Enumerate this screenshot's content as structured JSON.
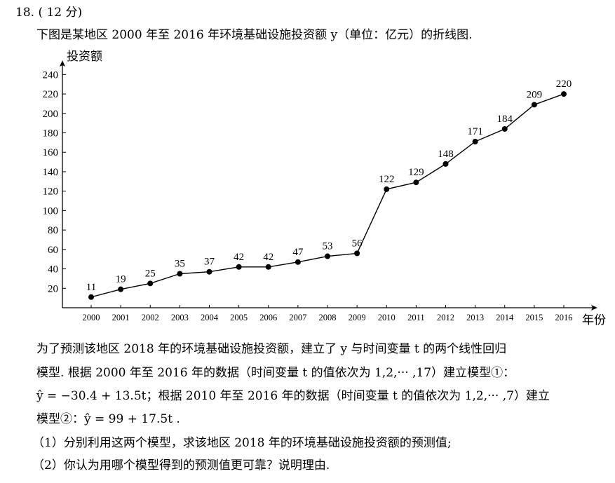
{
  "problem": {
    "number": "18.",
    "score": "( 12 分)",
    "intro": "下图是某地区 2000 年至 2016 年环境基础设施投资额 y（单位：亿元）的折线图.",
    "para_lines": [
      "为了预测该地区 2018 年的环境基础设施投资额，建立了 y 与时间变量 t 的两个线性回归",
      "模型. 根据 2000 年至 2016 年的数据（时间变量 t 的值依次为 1,2,··· ,17）建立模型①：",
      "ŷ = −30.4 + 13.5t；根据 2010 年至 2016 年的数据（时间变量 t 的值依次为 1,2,··· ,7）建立",
      "模型②：ŷ = 99 + 17.5t ."
    ],
    "question_1": "（1）分别利用这两个模型，求该地区 2018 年的环境基础设施投资额的预测值;",
    "question_2": "（2）你认为用哪个模型得到的预测值更可靠？说明理由."
  },
  "chart_data": {
    "type": "line",
    "title": "",
    "xlabel": "年份",
    "ylabel": "投资额",
    "categories": [
      "2000",
      "2001",
      "2002",
      "2003",
      "2004",
      "2005",
      "2006",
      "2007",
      "2008",
      "2009",
      "2010",
      "2011",
      "2012",
      "2013",
      "2014",
      "2015",
      "2016"
    ],
    "values": [
      11,
      19,
      25,
      35,
      37,
      42,
      42,
      47,
      53,
      56,
      122,
      129,
      148,
      171,
      184,
      209,
      220
    ],
    "yticks": [
      20,
      40,
      60,
      80,
      100,
      120,
      140,
      160,
      180,
      200,
      220,
      240
    ],
    "ylim": [
      0,
      252
    ],
    "grid": false,
    "data_labels": true
  }
}
